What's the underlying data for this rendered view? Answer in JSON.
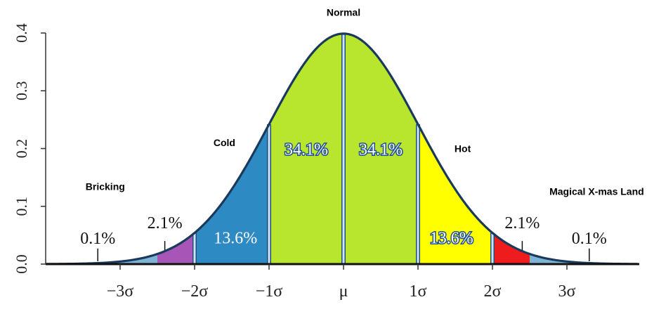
{
  "chart_data": {
    "type": "area",
    "title": "",
    "xlabel": "",
    "ylabel": "",
    "ylim": [
      0,
      0.4
    ],
    "xlim": [
      -4.5,
      4
    ],
    "yticks": [
      {
        "value": 0.0,
        "label": "0.0"
      },
      {
        "value": 0.1,
        "label": "0.1"
      },
      {
        "value": 0.2,
        "label": "0.2"
      },
      {
        "value": 0.3,
        "label": "0.3"
      },
      {
        "value": 0.4,
        "label": "0.4"
      }
    ],
    "xticks": [
      {
        "value": -3,
        "label": "−3σ"
      },
      {
        "value": -2,
        "label": "−2σ"
      },
      {
        "value": -1,
        "label": "−1σ"
      },
      {
        "value": 0,
        "label": "μ"
      },
      {
        "value": 1,
        "label": "1σ"
      },
      {
        "value": 2,
        "label": "2σ"
      },
      {
        "value": 3,
        "label": "3σ"
      }
    ],
    "curve": "standard normal density",
    "regions": [
      {
        "from": -2.5,
        "to": -2,
        "percent": "2.1%",
        "color": "#a855b8"
      },
      {
        "from": -2,
        "to": -1,
        "percent": "13.6%",
        "color": "#2e8ac2"
      },
      {
        "from": -1,
        "to": 0,
        "percent": "34.1%",
        "color": "#b8e52e"
      },
      {
        "from": 0,
        "to": 1,
        "percent": "34.1%",
        "color": "#b8e52e"
      },
      {
        "from": 1,
        "to": 2,
        "percent": "13.6%",
        "color": "#ffff00"
      },
      {
        "from": 2,
        "to": 2.5,
        "percent": "2.1%",
        "color": "#ee1c1c"
      }
    ],
    "tail_color": "#7fb3d5",
    "outside_labels": [
      {
        "x": -3.3,
        "text": "0.1%"
      },
      {
        "x": -2.4,
        "text": "2.1%"
      },
      {
        "x": 2.4,
        "text": "2.1%"
      },
      {
        "x": 3.3,
        "text": "0.1%"
      }
    ],
    "category_labels": [
      {
        "text": "Bricking",
        "x": -3.2,
        "y": 0.128
      },
      {
        "text": "Cold",
        "x": -1.6,
        "y": 0.204
      },
      {
        "text": "Normal",
        "x": 0,
        "y": 0.43
      },
      {
        "text": "Hot",
        "x": 1.6,
        "y": 0.194
      },
      {
        "text": "Magical X-mas Land",
        "x": 3.4,
        "y": 0.12
      }
    ]
  }
}
